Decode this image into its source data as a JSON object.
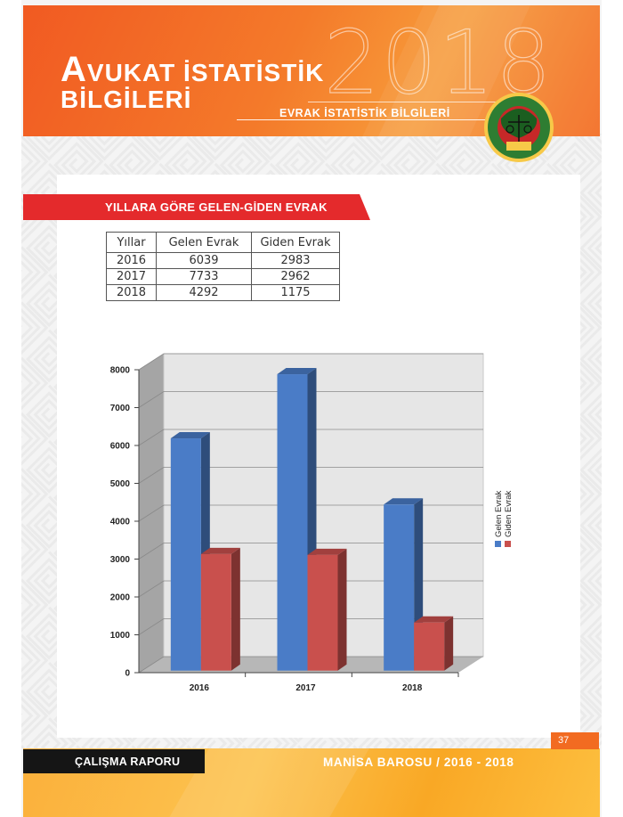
{
  "header": {
    "title_line1_initial": "A",
    "title_line1_rest": "VUKAT İSTATİSTİK",
    "title_line2": "BİLGİLERİ",
    "year_watermark": "2018",
    "subtitle": "EVRAK İSTATİSTİK BİLGİLERİ",
    "logo": {
      "top_text": "MANİSA BAROSU",
      "year": "1915"
    }
  },
  "section": {
    "title": "YILLARA GÖRE GELEN-GİDEN EVRAK"
  },
  "table": {
    "headers": [
      "Yıllar",
      "Gelen Evrak",
      "Giden Evrak"
    ],
    "rows": [
      [
        "2016",
        "6039",
        "2983"
      ],
      [
        "2017",
        "7733",
        "2962"
      ],
      [
        "2018",
        "4292",
        "1175"
      ]
    ]
  },
  "chart_data": {
    "type": "bar",
    "categories": [
      "2016",
      "2017",
      "2018"
    ],
    "series": [
      {
        "name": "Gelen Evrak",
        "values": [
          6039,
          7733,
          4292
        ],
        "color": "#4a7cc7"
      },
      {
        "name": "Giden Evrak",
        "values": [
          2983,
          2962,
          1175
        ],
        "color": "#c9504d"
      }
    ],
    "yticks": [
      "0",
      "1000",
      "2000",
      "3000",
      "4000",
      "5000",
      "6000",
      "7000",
      "8000"
    ],
    "ylim": [
      0,
      8000
    ],
    "legend": "right",
    "grid": true
  },
  "footer": {
    "left": "ÇALIŞMA RAPORU",
    "right": "MANİSA BAROSU / 2016 - 2018",
    "page_number": "37"
  },
  "colors": {
    "orange": "#f15a22",
    "red_ribbon": "#e42a2c",
    "footer_yellow": "#fbb03b",
    "logo_green": "#2e7d32"
  }
}
